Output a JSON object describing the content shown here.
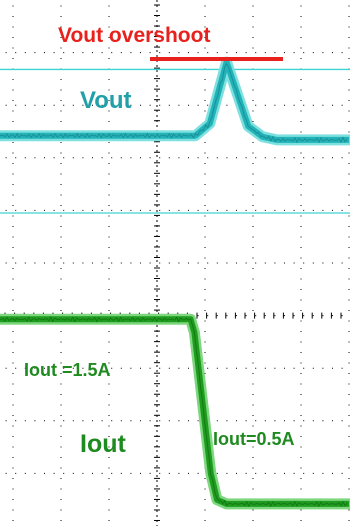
{
  "chart_data": {
    "type": "line",
    "title": "",
    "xlabel": "",
    "ylabel": "",
    "grid": true,
    "grid_style": "dotted",
    "background": "#ffffff",
    "x_divisions": 8,
    "y_divisions": 10,
    "xlim": [
      -4,
      4
    ],
    "ylim": [
      0,
      10
    ],
    "reference_lines": [
      {
        "name": "vout-overshoot-level",
        "y": 8.68,
        "color": "#3fd3d3"
      },
      {
        "name": "vout-steady-level",
        "y": 5.95,
        "color": "#3fd3d3"
      }
    ],
    "series": [
      {
        "name": "Vout",
        "color": "#21b3b8",
        "x": [
          -4.0,
          0.8,
          1.1,
          1.45,
          1.9,
          2.2,
          2.5,
          4.0
        ],
        "y": [
          7.42,
          7.42,
          7.65,
          8.82,
          7.6,
          7.4,
          7.34,
          7.34
        ]
      },
      {
        "name": "Iout",
        "color": "#1f9b1f",
        "x": [
          -4.0,
          0.7,
          0.78,
          1.12,
          1.25,
          1.45,
          4.0
        ],
        "y": [
          3.93,
          3.93,
          3.68,
          1.0,
          0.5,
          0.42,
          0.42
        ]
      }
    ],
    "annotations": [
      {
        "text": "Vout overshoot",
        "color": "#e8211c"
      },
      {
        "text": "Vout",
        "color": "#21a0a8"
      },
      {
        "text": "Iout =1.5A",
        "color": "#1f8a1f"
      },
      {
        "text": "Iout",
        "color": "#1f8a1f"
      },
      {
        "text": "Iout=0.5A",
        "color": "#1f8a1f"
      }
    ]
  },
  "colors": {
    "overshoot_marker": "#e8211c",
    "grid": "#000000",
    "vout_halo": "#7fe0e0",
    "vout_core": "#1c8f96",
    "iout_halo": "#7ed67e",
    "iout_core": "#137a13"
  }
}
